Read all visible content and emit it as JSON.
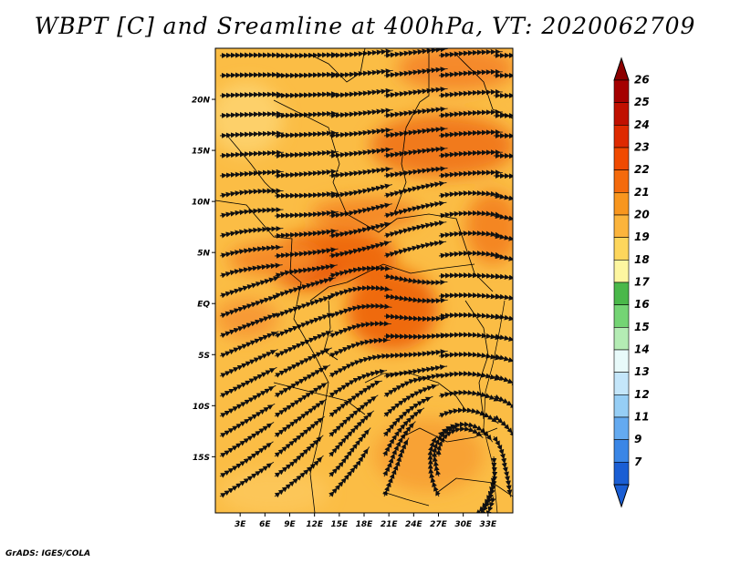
{
  "title": "WBPT [C] and Sreamline at 400hPa, VT: 2020062709",
  "credit": "GrADS: IGES/COLA",
  "map": {
    "lat_labels": [
      "20N",
      "15N",
      "10N",
      "5N",
      "EQ",
      "5S",
      "10S",
      "15S"
    ],
    "lat_values": [
      20,
      15,
      10,
      5,
      0,
      -5,
      -10,
      -15
    ],
    "lon_labels": [
      "3E",
      "6E",
      "9E",
      "12E",
      "15E",
      "18E",
      "21E",
      "24E",
      "27E",
      "30E",
      "33E"
    ],
    "lon_values": [
      3,
      6,
      9,
      12,
      15,
      18,
      21,
      24,
      27,
      30,
      33
    ],
    "lon_range": [
      0,
      36
    ],
    "lat_range": [
      -20.5,
      25
    ]
  },
  "colorbar": {
    "labels": [
      "26",
      "25",
      "24",
      "23",
      "22",
      "21",
      "20",
      "19",
      "18",
      "17",
      "16",
      "15",
      "14",
      "13",
      "12",
      "11",
      "9",
      "7"
    ],
    "colors": [
      "#a50000",
      "#c01000",
      "#de2a00",
      "#f04a00",
      "#f46a0c",
      "#f8961e",
      "#fbb43c",
      "#fdd65c",
      "#fdf6a0",
      "#4ab84a",
      "#74d474",
      "#b4ecb4",
      "#e8fafa",
      "#c4e6fa",
      "#96cef5",
      "#64aaf0",
      "#3a86e6",
      "#1a5ed4"
    ],
    "top_color": "#8c0000",
    "bottom_color": "#1a5ed4"
  }
}
